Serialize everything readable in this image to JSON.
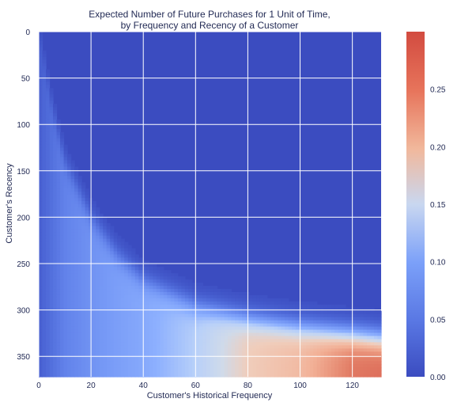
{
  "chart_data": {
    "type": "heatmap",
    "title_lines": [
      "Expected Number of Future Purchases for 1 Unit of Time,",
      "by Frequency and Recency of a Customer"
    ],
    "xlabel": "Customer's Historical Frequency",
    "ylabel": "Customer's Recency",
    "xlim": [
      0,
      131
    ],
    "ylim": [
      0,
      372
    ],
    "y_inverted": true,
    "x_ticks": [
      0,
      20,
      40,
      60,
      80,
      100,
      120
    ],
    "y_ticks": [
      0,
      50,
      100,
      150,
      200,
      250,
      300,
      350
    ],
    "colorbar": {
      "range": [
        0,
        0.3
      ],
      "ticks": [
        0.0,
        0.05,
        0.1,
        0.15,
        0.2,
        0.25
      ],
      "tick_labels": [
        "0.00",
        "0.05",
        "0.10",
        "0.15",
        "0.20",
        "0.25"
      ],
      "colormap": "coolwarm",
      "low_color": "#3b4cc0",
      "mid_color": "#dddddd",
      "high_color": "#b40426"
    },
    "grid": true,
    "grid_color": "#ffffff",
    "value_model": {
      "description_free": true,
      "boundary_recency": [
        [
          0,
          0
        ],
        [
          5,
          80
        ],
        [
          10,
          140
        ],
        [
          20,
          200
        ],
        [
          30,
          240
        ],
        [
          40,
          268
        ],
        [
          60,
          296
        ],
        [
          80,
          310
        ],
        [
          100,
          319
        ],
        [
          120,
          326
        ],
        [
          131,
          330
        ]
      ],
      "value_below_boundary_by_frequency": [
        [
          0,
          0.02
        ],
        [
          10,
          0.06
        ],
        [
          20,
          0.08
        ],
        [
          40,
          0.11
        ],
        [
          60,
          0.15
        ],
        [
          80,
          0.21
        ],
        [
          100,
          0.23
        ],
        [
          120,
          0.275
        ],
        [
          131,
          0.28
        ]
      ]
    }
  }
}
